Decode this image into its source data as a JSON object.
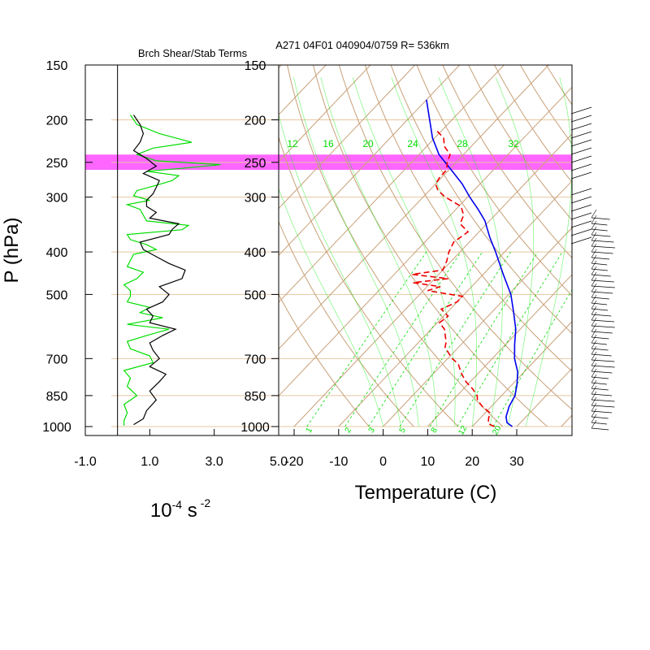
{
  "figure": {
    "title": "A271 04F01 040904/0759 R= 536km",
    "left_title": "Brch Shear/Stab Terms",
    "ylabel": "P (hPa)",
    "left_xlabel_base": "10",
    "left_xlabel_exp": "-4",
    "left_xlabel_unit": "s",
    "left_xlabel_unit_exp": "-2",
    "right_xlabel": "Temperature (C)"
  },
  "colors": {
    "highlight": "#ff00ff",
    "dry_adiabat": "#c8a078",
    "isotherm": "#c8a078",
    "isobar_line": "#e6c8a0",
    "mixing_ratio": "#00dd00",
    "moist_adiabat": "#00ee00",
    "temperature": "#0000ee",
    "dewpoint": "#ee0000",
    "shear": "#00dd00",
    "stability": "#000000",
    "wind_barb": "#000000"
  },
  "chart_data": [
    {
      "type": "line",
      "name": "richardson-terms",
      "title": "Brch Shear/Stab Terms",
      "xlim": [
        -1.0,
        5.0
      ],
      "xticks": [
        "-1.0",
        "1.0",
        "3.0",
        "5.0"
      ],
      "xtick_values": [
        -1.0,
        1.0,
        3.0,
        5.0
      ],
      "y_scale": "log-pressure",
      "ylim": [
        1000,
        150
      ],
      "yticks": [
        150,
        200,
        250,
        300,
        400,
        500,
        700,
        850,
        1000
      ],
      "highlight_band_hpa": [
        240,
        260
      ],
      "series": [
        {
          "key": "green",
          "p": [
            195,
            205,
            215,
            225,
            232,
            240,
            248,
            253,
            258,
            262,
            268,
            275,
            282,
            290,
            298,
            305,
            312,
            320,
            330,
            340,
            348,
            356,
            365,
            375,
            385,
            395,
            405,
            418,
            432,
            445,
            460,
            475,
            490,
            505,
            520,
            535,
            550,
            565,
            585,
            600,
            620,
            640,
            665,
            690,
            715,
            745,
            775,
            810,
            850,
            890,
            930,
            970,
            995
          ],
          "x": [
            0.4,
            0.6,
            1.3,
            2.3,
            1.1,
            0.6,
            1.2,
            3.2,
            2.0,
            0.9,
            1.9,
            1.7,
            1.2,
            0.6,
            0.5,
            1.0,
            0.3,
            0.7,
            0.8,
            0.9,
            2.2,
            2.0,
            0.3,
            0.4,
            0.9,
            1.2,
            0.5,
            0.4,
            0.3,
            0.8,
            0.6,
            0.2,
            0.4,
            0.4,
            0.3,
            1.0,
            0.7,
            1.4,
            0.3,
            1.6,
            0.9,
            0.3,
            0.4,
            1.0,
            1.1,
            0.2,
            0.4,
            0.3,
            0.6,
            0.2,
            0.3,
            0.2,
            0.2
          ]
        },
        {
          "key": "black",
          "p": [
            195,
            205,
            215,
            225,
            235,
            245,
            255,
            265,
            275,
            285,
            295,
            305,
            315,
            325,
            335,
            345,
            355,
            365,
            380,
            395,
            410,
            425,
            440,
            460,
            480,
            500,
            520,
            540,
            560,
            580,
            600,
            620,
            645,
            670,
            700,
            730,
            760,
            790,
            830,
            870,
            920,
            960,
            990
          ],
          "x": [
            0.5,
            0.7,
            0.8,
            0.7,
            0.5,
            0.9,
            1.2,
            0.8,
            1.3,
            1.2,
            1.1,
            0.9,
            0.9,
            1.2,
            1.0,
            1.9,
            1.7,
            1.6,
            0.7,
            0.8,
            1.2,
            1.6,
            2.1,
            2.0,
            1.3,
            1.6,
            1.4,
            0.9,
            1.1,
            1.0,
            1.8,
            1.4,
            1.0,
            1.1,
            1.3,
            1.0,
            1.5,
            1.3,
            1.0,
            1.2,
            0.9,
            0.8,
            0.5
          ]
        }
      ]
    },
    {
      "type": "line",
      "name": "skew-t",
      "xlabel": "Temperature (C)",
      "xlim": [
        -20,
        40
      ],
      "xticks": [
        "-20",
        "-10",
        "0",
        "10",
        "20",
        "30"
      ],
      "xtick_values": [
        -20,
        -10,
        0,
        10,
        20,
        30
      ],
      "y_scale": "log-pressure",
      "ylim": [
        1000,
        150
      ],
      "yticks": [
        150,
        200,
        250,
        300,
        400,
        500,
        700,
        850,
        1000
      ],
      "highlight_band_hpa": [
        240,
        260
      ],
      "isotherm_spacing_c": 10,
      "dry_adiabat_theta_k": [
        270,
        280,
        290,
        300,
        310,
        320,
        330,
        340,
        350,
        360,
        370,
        380,
        390,
        400,
        410,
        420,
        430,
        440,
        450,
        460,
        470,
        480,
        490,
        500
      ],
      "mixing_ratio_labels_top": [
        "12",
        "16",
        "20",
        "24",
        "28",
        "32"
      ],
      "mixing_ratio_labels_bottom": [
        "1",
        "2",
        "3",
        "5",
        "8",
        "12",
        "20"
      ],
      "series": [
        {
          "key": "temperature",
          "p": [
            1000,
            980,
            950,
            900,
            850,
            800,
            750,
            700,
            650,
            600,
            550,
            500,
            450,
            400,
            370,
            340,
            320,
            300,
            280,
            260,
            240,
            220,
            200,
            180
          ],
          "t": [
            29,
            27,
            25.5,
            24,
            23,
            21,
            18.5,
            15,
            12,
            9,
            5,
            0.5,
            -5.5,
            -12,
            -16.5,
            -21,
            -25,
            -29.5,
            -34,
            -39.5,
            -45.5,
            -50.5,
            -55,
            -60
          ]
        },
        {
          "key": "dewpoint",
          "p": [
            1000,
            985,
            960,
            930,
            900,
            870,
            850,
            820,
            790,
            760,
            740,
            720,
            700,
            680,
            660,
            640,
            620,
            600,
            580,
            560,
            540,
            520,
            505,
            490,
            480,
            470,
            460,
            450,
            440,
            420,
            400,
            380,
            360,
            345,
            330,
            315,
            300,
            290,
            280,
            270,
            260,
            250,
            240,
            230,
            220,
            212
          ],
          "t": [
            25,
            23,
            22,
            21,
            18,
            15.5,
            14.5,
            12,
            9,
            6.5,
            5,
            3.5,
            1,
            -1,
            -3,
            -4,
            -5.5,
            -7,
            -9.5,
            -9,
            -12,
            -10,
            -10,
            -19,
            -17,
            -24,
            -17,
            -26,
            -20,
            -21,
            -22.5,
            -23.5,
            -22.5,
            -26,
            -27,
            -29.5,
            -35,
            -38,
            -40,
            -40.5,
            -40.5,
            -42,
            -43,
            -46,
            -48,
            -51
          ]
        }
      ]
    }
  ]
}
